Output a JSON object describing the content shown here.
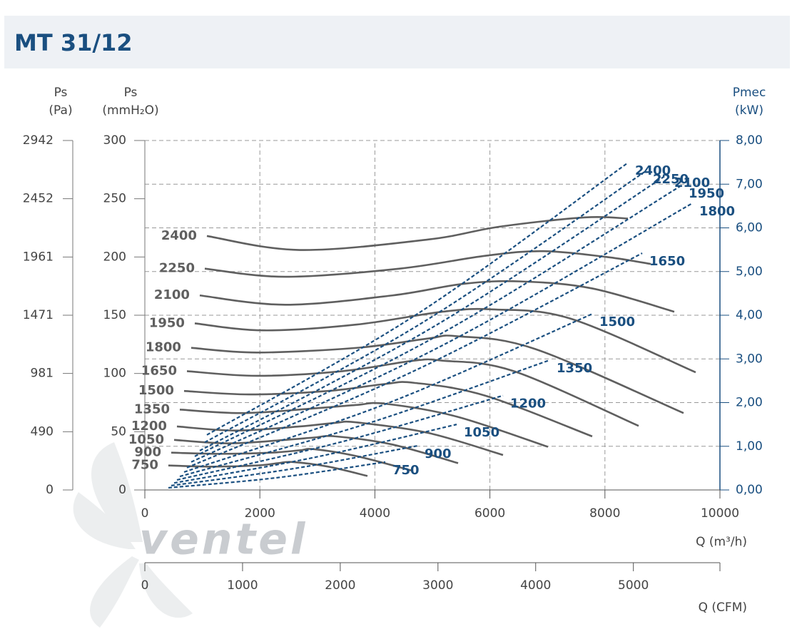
{
  "title": "MT 31/12",
  "logo": "ventel",
  "chart_data": {
    "type": "line",
    "y_title": "Ps",
    "y_unit": "(mmH₂O)",
    "y3_title": "Ps",
    "y3_unit": "(Pa)",
    "y2_title": "Pmec",
    "y2_unit": "(kW)",
    "x_title": "Q (m³/h)",
    "x2_title": "Q (CFM)",
    "xlim": [
      0,
      10000
    ],
    "xticks": [
      0,
      2000,
      4000,
      6000,
      8000,
      10000
    ],
    "x2lim": [
      0,
      5886
    ],
    "x2ticks": [
      0,
      1000,
      2000,
      3000,
      4000,
      5000
    ],
    "ylim": [
      0,
      300
    ],
    "yticks": [
      0,
      50,
      100,
      150,
      200,
      250,
      300
    ],
    "y3lim": [
      0,
      2942
    ],
    "y3ticks": [
      0,
      490,
      981,
      1471,
      1961,
      2452,
      2942
    ],
    "y2lim": [
      0,
      8
    ],
    "y2ticks": [
      {
        "value": 0,
        "label": "0,00"
      },
      {
        "value": 1,
        "label": "1,00"
      },
      {
        "value": 2,
        "label": "2,00"
      },
      {
        "value": 3,
        "label": "3,00"
      },
      {
        "value": 4,
        "label": "4,00"
      },
      {
        "value": 5,
        "label": "5,00"
      },
      {
        "value": 6,
        "label": "6,00"
      },
      {
        "value": 7,
        "label": "7,00"
      },
      {
        "value": 8,
        "label": "8,00"
      }
    ],
    "grid": true,
    "series": [
      {
        "name": "2400",
        "color": "#5f5f5f",
        "x": [
          1079,
          2692,
          4926,
          6166,
          7655,
          8400
        ],
        "values": [
          218,
          206,
          215,
          226,
          234,
          233
        ]
      },
      {
        "name": "2250",
        "color": "#5f5f5f",
        "x": [
          1042,
          2444,
          4429,
          5918,
          6911,
          8027,
          8797
        ],
        "values": [
          190,
          183,
          190,
          201,
          205,
          200,
          194
        ]
      },
      {
        "name": "2100",
        "color": "#5f5f5f",
        "x": [
          955,
          2444,
          4305,
          5546,
          6538,
          7779,
          9206
        ],
        "values": [
          167,
          159,
          167,
          177,
          179,
          173,
          153
        ]
      },
      {
        "name": "1950",
        "color": "#5f5f5f",
        "x": [
          868,
          2072,
          3685,
          5174,
          6042,
          7407,
          9578
        ],
        "values": [
          143,
          137,
          142,
          153,
          155,
          147,
          101
        ]
      },
      {
        "name": "1800",
        "color": "#5f5f5f",
        "x": [
          806,
          1948,
          3685,
          4926,
          5422,
          6787,
          9367
        ],
        "values": [
          122,
          118,
          122,
          130,
          132,
          121,
          66
        ]
      },
      {
        "name": "1650",
        "color": "#5f5f5f",
        "x": [
          732,
          1948,
          3437,
          4677,
          5174,
          6414,
          8586
        ],
        "values": [
          102,
          98,
          102,
          111,
          111,
          102,
          55
        ]
      },
      {
        "name": "1500",
        "color": "#5f5f5f",
        "x": [
          682,
          1824,
          3189,
          4181,
          4677,
          5918,
          7779
        ],
        "values": [
          85,
          82,
          85,
          91,
          92,
          81,
          46
        ]
      },
      {
        "name": "1350",
        "color": "#5f5f5f",
        "x": [
          608,
          1700,
          2940,
          3685,
          4181,
          5422,
          7010
        ],
        "values": [
          69,
          66,
          70,
          73,
          74,
          63,
          37
        ]
      },
      {
        "name": "1200",
        "color": "#5f5f5f",
        "x": [
          558,
          1576,
          2692,
          3313,
          3685,
          4926,
          6228
        ],
        "values": [
          54.5,
          51,
          54.5,
          57.6,
          58,
          49,
          30
        ]
      },
      {
        "name": "1050",
        "color": "#5f5f5f",
        "x": [
          509,
          1452,
          2444,
          2940,
          3313,
          4305,
          5447
        ],
        "values": [
          43,
          40,
          43,
          45,
          46,
          39,
          23
        ]
      },
      {
        "name": "900",
        "color": "#5f5f5f",
        "x": [
          459,
          1328,
          2196,
          2692,
          2940,
          3685,
          4653
        ],
        "values": [
          32,
          31,
          32,
          34,
          35,
          29,
          16.5
        ]
      },
      {
        "name": "750",
        "color": "#5f5f5f",
        "x": [
          409,
          1203,
          1948,
          2320,
          2568,
          3189,
          3871
        ],
        "values": [
          21,
          20,
          21,
          23,
          24,
          20,
          12
        ]
      },
      {
        "name": "2400",
        "color": "#1a4f80",
        "axis": "y2",
        "x": [
          1079,
          4739,
          8400
        ],
        "values": [
          1.26,
          4.03,
          7.49
        ]
      },
      {
        "name": "2250",
        "color": "#1a4f80",
        "axis": "y2",
        "x": [
          1042,
          4876,
          8710
        ],
        "values": [
          1.09,
          3.87,
          7.3
        ]
      },
      {
        "name": "2100",
        "color": "#1a4f80",
        "axis": "y2",
        "x": [
          955,
          5025,
          9082
        ],
        "values": [
          0.9,
          3.74,
          7.22
        ]
      },
      {
        "name": "1950",
        "color": "#1a4f80",
        "axis": "y2",
        "x": [
          868,
          5099,
          9330
        ],
        "values": [
          0.77,
          3.54,
          6.97
        ]
      },
      {
        "name": "1800",
        "color": "#1a4f80",
        "axis": "y2",
        "x": [
          806,
          5161,
          9516
        ],
        "values": [
          0.64,
          3.3,
          6.56
        ]
      },
      {
        "name": "1650",
        "color": "#1a4f80",
        "axis": "y2",
        "x": [
          732,
          4690,
          8648
        ],
        "values": [
          0.51,
          2.73,
          5.42
        ]
      },
      {
        "name": "1500",
        "color": "#1a4f80",
        "axis": "y2",
        "x": [
          682,
          4231,
          7779
        ],
        "values": [
          0.41,
          1.99,
          4.03
        ]
      },
      {
        "name": "1350",
        "color": "#1a4f80",
        "axis": "y2",
        "x": [
          608,
          3821,
          7035
        ],
        "values": [
          0.31,
          1.5,
          2.97
        ]
      },
      {
        "name": "1200",
        "color": "#1a4f80",
        "axis": "y2",
        "x": [
          558,
          3387,
          6228
        ],
        "values": [
          0.23,
          1.09,
          2.16
        ]
      },
      {
        "name": "1050",
        "color": "#1a4f80",
        "axis": "y2",
        "x": [
          509,
          2965,
          5422
        ],
        "values": [
          0.16,
          0.75,
          1.5
        ]
      },
      {
        "name": "900",
        "color": "#1a4f80",
        "axis": "y2",
        "x": [
          459,
          2593,
          4739
        ],
        "values": [
          0.1,
          0.49,
          1.01
        ]
      },
      {
        "name": "750",
        "color": "#1a4f80",
        "axis": "y2",
        "x": [
          409,
          2295,
          4181
        ],
        "values": [
          0.05,
          0.28,
          0.64
        ]
      }
    ]
  }
}
